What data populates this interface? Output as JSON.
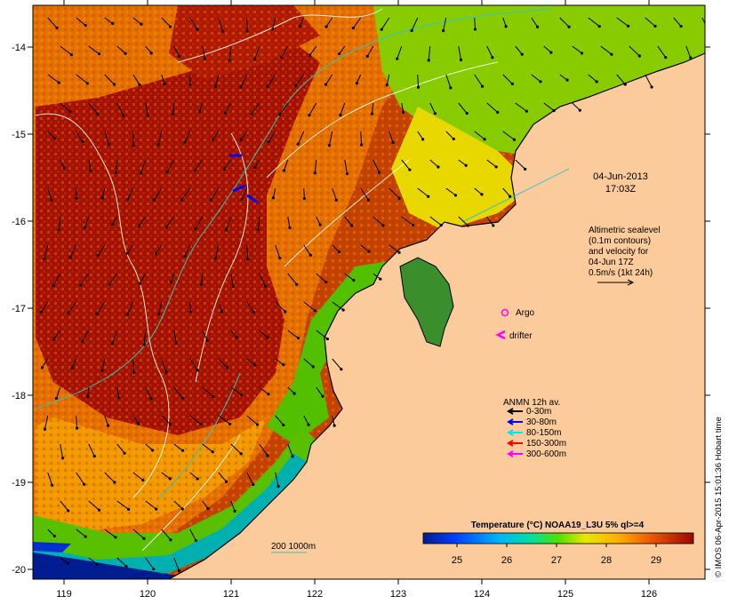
{
  "map": {
    "date": "04-Jun-2013",
    "time": "17:03Z",
    "x_ticks": [
      "119",
      "120",
      "121",
      "122",
      "123",
      "124",
      "125",
      "126"
    ],
    "y_ticks": [
      "-14",
      "-15",
      "-16",
      "-17",
      "-18",
      "-19",
      "-20"
    ],
    "altimetry_lines": [
      "Altimetric sealevel",
      "(0.1m contours)",
      "and velocity for",
      "04-Jun 17Z",
      "0.5m/s (1kt 24h)"
    ],
    "legend": {
      "argo_label": "Argo",
      "drifter_label": "drifter",
      "anmn_title": "ANMN 12h av.",
      "anmn_items": [
        {
          "label": "0-30m",
          "color": "#000000"
        },
        {
          "label": "30-80m",
          "color": "#0000ff"
        },
        {
          "label": "80-150m",
          "color": "#00e5e5"
        },
        {
          "label": "150-300m",
          "color": "#ff0000"
        },
        {
          "label": "300-600m",
          "color": "#ff00ff"
        }
      ]
    },
    "depth_contour_label": "200  1000m",
    "colorbar": {
      "title": "Temperature (°C) NOAA19_L3U 5% ql>=4",
      "ticks": [
        "25",
        "26",
        "27",
        "28",
        "29"
      ]
    },
    "credit": "© IMOS 06-Apr-2015 15:01:36 Hobart time",
    "colors": {
      "land": "#fbcb9c",
      "hot": "#a01000",
      "warm": "#e46a00",
      "mid": "#f8ad00",
      "cool": "#8ed300",
      "cold": "#06b6a4",
      "coldest": "#001c90"
    }
  }
}
